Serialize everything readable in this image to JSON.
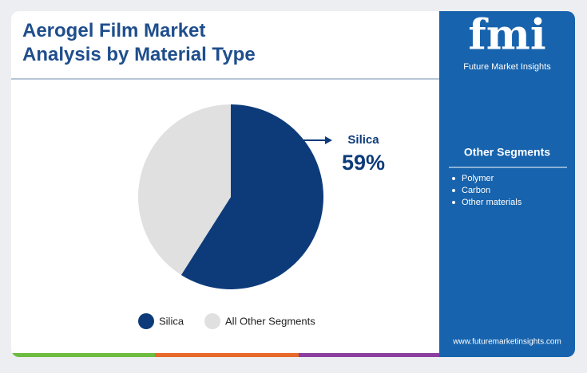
{
  "chart_data": {
    "type": "pie",
    "title": "Aerogel Film Market Analysis by Material Type",
    "categories": [
      "Silica",
      "All Other Segments"
    ],
    "values": [
      59,
      41
    ],
    "value_labels": [
      "59%",
      null
    ],
    "colors": [
      "#0d3b7a",
      "#e0e0e0"
    ]
  },
  "sidebar": {
    "logo": "fmi",
    "brand": "Future Market Insights",
    "heading": "Other Segments",
    "items": [
      "Polymer",
      "Carbon",
      "Other materials"
    ],
    "website": "www.futuremarketinsights.com"
  }
}
